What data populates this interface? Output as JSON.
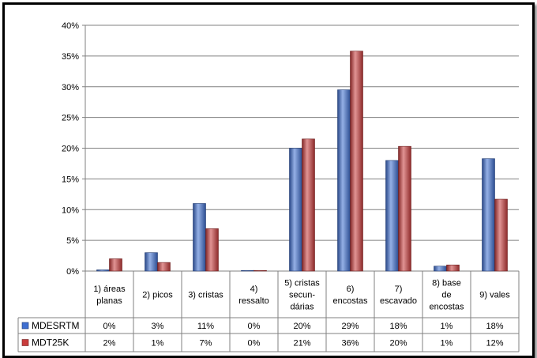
{
  "chart_data": {
    "type": "bar",
    "title": "",
    "xlabel": "",
    "ylabel": "",
    "ylim": [
      0,
      40
    ],
    "y_ticks": [
      "0%",
      "5%",
      "10%",
      "15%",
      "20%",
      "25%",
      "30%",
      "35%",
      "40%"
    ],
    "grid": true,
    "legend_placement": "left of data table",
    "categories": [
      [
        "1) áreas",
        "planas"
      ],
      [
        "2) picos"
      ],
      [
        "3) cristas"
      ],
      [
        "4)",
        "ressalto"
      ],
      [
        "5) cristas",
        "secun-",
        "dárias"
      ],
      [
        "6)",
        "encostas"
      ],
      [
        "7)",
        "escavado"
      ],
      [
        "8) base",
        "de",
        "encostas"
      ],
      [
        "9) vales"
      ]
    ],
    "series": [
      {
        "name": "MDESRTM",
        "color": "#3f6fd1",
        "values": [
          0.2,
          3.0,
          11.0,
          0.1,
          20.0,
          29.5,
          18.0,
          0.8,
          18.3
        ],
        "table_labels": [
          "0%",
          "3%",
          "11%",
          "0%",
          "20%",
          "29%",
          "18%",
          "1%",
          "18%"
        ]
      },
      {
        "name": "MDT25K",
        "color": "#c93c3c",
        "values": [
          2.0,
          1.4,
          6.9,
          0.1,
          21.5,
          35.8,
          20.3,
          1.0,
          11.7
        ],
        "table_labels": [
          "2%",
          "1%",
          "7%",
          "0%",
          "21%",
          "36%",
          "20%",
          "1%",
          "12%"
        ]
      }
    ]
  }
}
